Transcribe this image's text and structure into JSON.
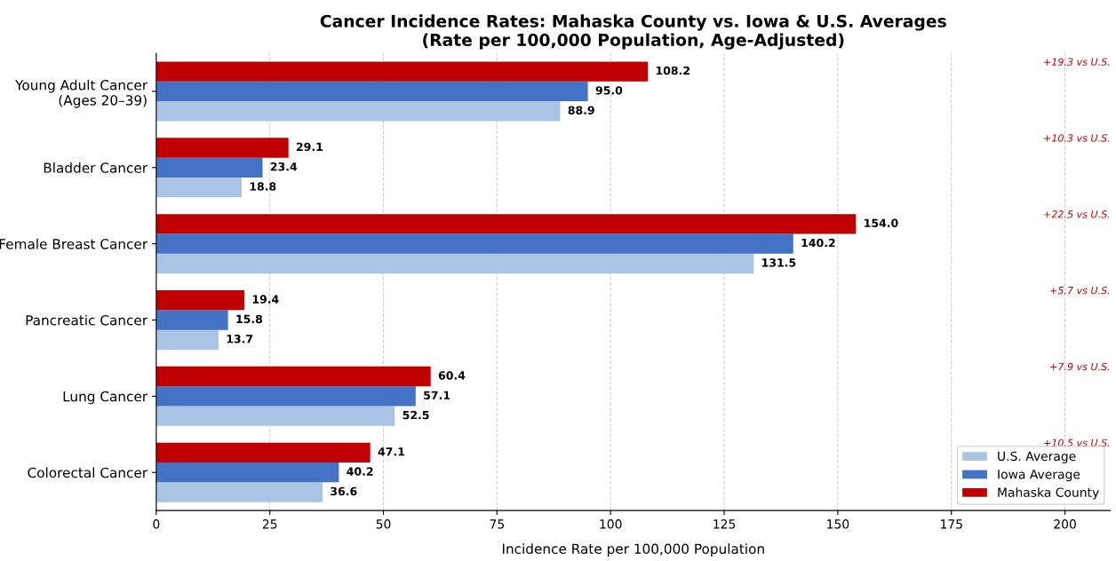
{
  "chart_data": {
    "type": "bar",
    "orientation": "horizontal",
    "title": "Cancer Incidence Rates: Mahaska County vs. Iowa & U.S. Averages\n(Rate per 100,000 Population, Age-Adjusted)",
    "xlabel": "Incidence Rate per 100,000 Population",
    "categories": [
      "Young Adult Cancer\n(Ages 20–39)",
      "Bladder Cancer",
      "Female Breast Cancer",
      "Pancreatic Cancer",
      "Lung Cancer",
      "Colorectal Cancer"
    ],
    "series": [
      {
        "name": "U.S. Average",
        "color": "#aac4e6",
        "values": [
          88.9,
          18.8,
          131.5,
          13.7,
          52.5,
          36.6
        ],
        "value_labels": [
          "88.9",
          "18.8",
          "131.5",
          "13.7",
          "52.5",
          "36.6"
        ]
      },
      {
        "name": "Iowa Average",
        "color": "#4472c4",
        "values": [
          95.0,
          23.4,
          140.2,
          15.8,
          57.1,
          40.2
        ],
        "value_labels": [
          "95.0",
          "23.4",
          "140.2",
          "15.8",
          "57.1",
          "40.2"
        ]
      },
      {
        "name": "Mahaska County",
        "color": "#c00000",
        "values": [
          108.2,
          29.1,
          154.0,
          19.4,
          60.4,
          47.1
        ],
        "value_labels": [
          "108.2",
          "29.1",
          "154.0",
          "19.4",
          "60.4",
          "47.1"
        ]
      }
    ],
    "xlim": [
      0,
      210
    ],
    "xticks": [
      0,
      25,
      50,
      75,
      100,
      125,
      150,
      175,
      200
    ],
    "grid": "x",
    "legend": "bottom right",
    "annotations": [
      "+19.3 vs U.S.",
      "+10.3 vs U.S.",
      "+22.5 vs U.S.",
      "+5.7 vs U.S.",
      "+7.9 vs U.S.",
      "+10.5 vs U.S."
    ]
  }
}
